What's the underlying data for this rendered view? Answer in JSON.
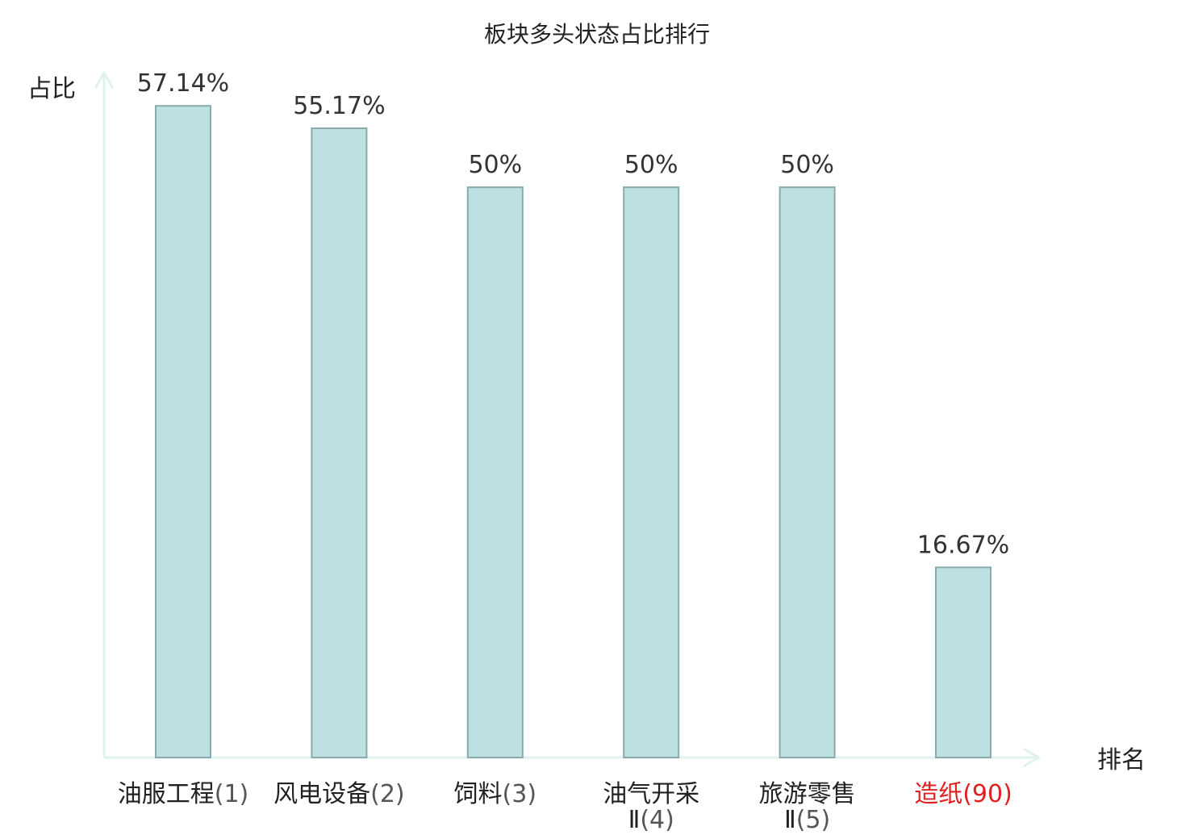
{
  "chart_data": {
    "type": "bar",
    "title": "板块多头状态占比排行",
    "xlabel": "排名",
    "ylabel": "占比",
    "ylim": [
      0,
      60
    ],
    "categories": [
      {
        "name_lines": [
          "油服工程"
        ],
        "rank": "(1)",
        "highlight": false
      },
      {
        "name_lines": [
          "风电设备"
        ],
        "rank": "(2)",
        "highlight": false
      },
      {
        "name_lines": [
          "饲料"
        ],
        "rank": "(3)",
        "highlight": false
      },
      {
        "name_lines": [
          "油气开采",
          "Ⅱ"
        ],
        "rank": "(4)",
        "highlight": false
      },
      {
        "name_lines": [
          "旅游零售",
          "Ⅱ"
        ],
        "rank": "(5)",
        "highlight": false
      },
      {
        "name_lines": [
          "造纸"
        ],
        "rank": "(90)",
        "highlight": true
      }
    ],
    "values": [
      57.14,
      55.17,
      50,
      50,
      50,
      16.67
    ],
    "value_labels": [
      "57.14%",
      "55.17%",
      "50%",
      "50%",
      "50%",
      "16.67%"
    ],
    "grid": false,
    "legend": "none"
  },
  "colors": {
    "bar_fill": "#bde0e3",
    "bar_stroke": "#8aabab",
    "axis": "#dff2ef",
    "highlight_text": "#e02020"
  }
}
